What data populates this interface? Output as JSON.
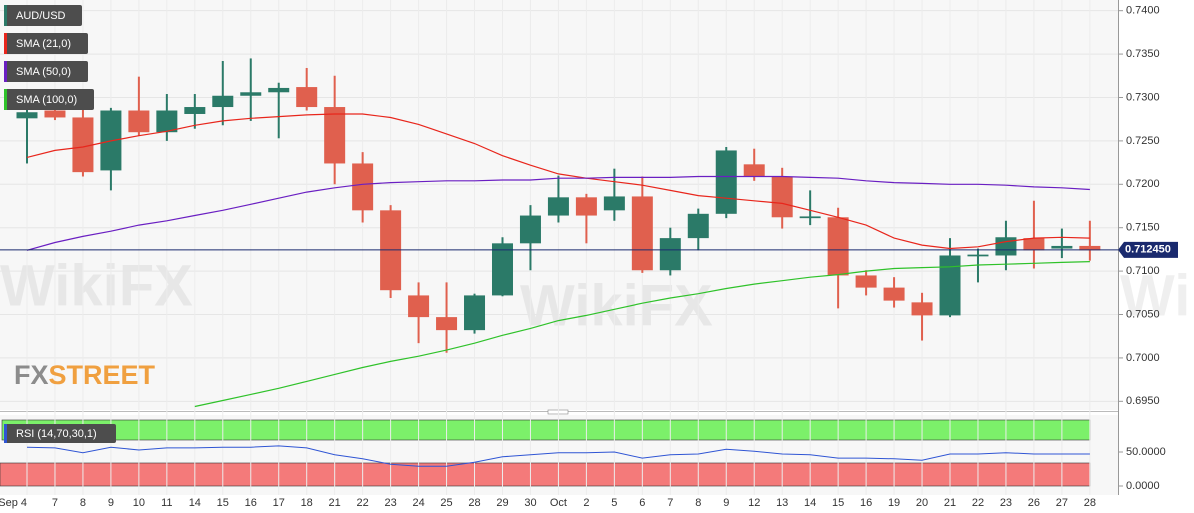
{
  "chart_data": {
    "type": "candlestick",
    "categories": [
      "Sep 4",
      "7",
      "8",
      "9",
      "10",
      "11",
      "14",
      "15",
      "16",
      "17",
      "18",
      "21",
      "22",
      "23",
      "24",
      "25",
      "28",
      "29",
      "30",
      "Oct",
      "2",
      "5",
      "6",
      "7",
      "8",
      "9",
      "12",
      "13",
      "14",
      "15",
      "16",
      "19",
      "20",
      "21",
      "22",
      "23",
      "26",
      "27",
      "28"
    ],
    "ylim": [
      0.694,
      0.741
    ],
    "yticks": [
      {
        "value": 0.74,
        "label": "0.7400"
      },
      {
        "value": 0.735,
        "label": "0.7350"
      },
      {
        "value": 0.73,
        "label": "0.7300"
      },
      {
        "value": 0.725,
        "label": "0.7250"
      },
      {
        "value": 0.72,
        "label": "0.7200"
      },
      {
        "value": 0.715,
        "label": "0.7150"
      },
      {
        "value": 0.71,
        "label": "0.7100"
      },
      {
        "value": 0.705,
        "label": "0.7050"
      },
      {
        "value": 0.7,
        "label": "0.7000"
      },
      {
        "value": 0.695,
        "label": "0.6950"
      }
    ],
    "grid": true,
    "candles": {
      "name": "AUD/USD",
      "up_color": "#2b7a68",
      "down_color": "#e0604e",
      "open": [
        0.7276,
        0.7285,
        0.7277,
        0.7216,
        0.7285,
        0.726,
        0.7281,
        0.7289,
        0.7302,
        0.7306,
        0.7312,
        0.7289,
        0.7224,
        0.717,
        0.7072,
        0.7047,
        0.7032,
        0.7072,
        0.7132,
        0.7164,
        0.7185,
        0.717,
        0.7186,
        0.7101,
        0.7138,
        0.7166,
        0.7223,
        0.7209,
        0.7161,
        0.7162,
        0.7095,
        0.7081,
        0.7064,
        0.7049,
        0.7117,
        0.7118,
        0.7138,
        0.7126,
        0.7129
      ],
      "high": [
        0.73,
        0.7296,
        0.729,
        0.7288,
        0.7324,
        0.7304,
        0.7304,
        0.7342,
        0.7345,
        0.7317,
        0.7334,
        0.7325,
        0.7237,
        0.7176,
        0.7087,
        0.7087,
        0.7074,
        0.7139,
        0.7176,
        0.721,
        0.7189,
        0.7218,
        0.7209,
        0.715,
        0.7172,
        0.7243,
        0.7241,
        0.7219,
        0.7193,
        0.7173,
        0.7101,
        0.7093,
        0.7075,
        0.7138,
        0.7126,
        0.7158,
        0.7181,
        0.7149,
        0.7158
      ],
      "low": [
        0.7224,
        0.7274,
        0.7209,
        0.7193,
        0.7256,
        0.725,
        0.7264,
        0.7268,
        0.7273,
        0.7253,
        0.7285,
        0.72,
        0.7156,
        0.7069,
        0.7017,
        0.7006,
        0.7028,
        0.7071,
        0.7101,
        0.7156,
        0.7132,
        0.7158,
        0.7098,
        0.7095,
        0.7124,
        0.7161,
        0.7204,
        0.7149,
        0.7153,
        0.7057,
        0.7072,
        0.7058,
        0.702,
        0.7047,
        0.7087,
        0.7101,
        0.7103,
        0.7115,
        0.7112
      ],
      "close": [
        0.7283,
        0.7277,
        0.7214,
        0.7285,
        0.726,
        0.7285,
        0.7289,
        0.7302,
        0.7306,
        0.7311,
        0.7289,
        0.7224,
        0.717,
        0.7078,
        0.7047,
        0.7032,
        0.7072,
        0.7132,
        0.7164,
        0.7185,
        0.7164,
        0.7186,
        0.7101,
        0.7138,
        0.7166,
        0.7239,
        0.7209,
        0.7162,
        0.7163,
        0.7095,
        0.7081,
        0.7066,
        0.7049,
        0.7118,
        0.7119,
        0.7139,
        0.7124,
        0.7129,
        0.7124
      ]
    },
    "series": [
      {
        "name": "SMA (21,0)",
        "color": "#e8261c",
        "values": [
          0.7231,
          0.7239,
          0.7243,
          0.725,
          0.7256,
          0.7261,
          0.7268,
          0.7273,
          0.7276,
          0.7278,
          0.728,
          0.7281,
          0.7281,
          0.7277,
          0.7269,
          0.7258,
          0.7247,
          0.7233,
          0.7222,
          0.7212,
          0.7207,
          0.7203,
          0.7199,
          0.7193,
          0.7187,
          0.7184,
          0.7181,
          0.7178,
          0.717,
          0.7162,
          0.7153,
          0.7138,
          0.713,
          0.7126,
          0.7128,
          0.7134,
          0.7138,
          0.7139,
          0.7138
        ]
      },
      {
        "name": "SMA (50,0)",
        "color": "#6a1fc2",
        "values": [
          0.7124,
          0.7133,
          0.714,
          0.7146,
          0.7153,
          0.7158,
          0.7164,
          0.717,
          0.7177,
          0.7184,
          0.7191,
          0.7196,
          0.72,
          0.7202,
          0.7203,
          0.7204,
          0.7204,
          0.7205,
          0.7205,
          0.7207,
          0.7207,
          0.7208,
          0.7208,
          0.7208,
          0.7209,
          0.7209,
          0.7209,
          0.7209,
          0.7208,
          0.7207,
          0.7204,
          0.7202,
          0.7201,
          0.72,
          0.72,
          0.7199,
          0.7197,
          0.7196,
          0.7194
        ]
      },
      {
        "name": "SMA (100,0)",
        "color": "#2fc22a",
        "values": [
          null,
          null,
          null,
          null,
          null,
          null,
          0.6944,
          0.6951,
          0.6958,
          0.6965,
          0.6973,
          0.6981,
          0.6989,
          0.6996,
          0.7002,
          0.7009,
          0.7017,
          0.7026,
          0.7034,
          0.7043,
          0.7049,
          0.7056,
          0.7063,
          0.7069,
          0.7074,
          0.708,
          0.7085,
          0.7089,
          0.7093,
          0.7096,
          0.71,
          0.7103,
          0.7104,
          0.7105,
          0.7107,
          0.7108,
          0.7109,
          0.711,
          0.7111
        ]
      }
    ],
    "last_price": {
      "value": 0.71245,
      "label": "0.712450",
      "color": "#1a2a6e"
    },
    "rsi": {
      "name": "RSI (14,70,30,1)",
      "color": "#2f55d4",
      "ylim": [
        0,
        100
      ],
      "yticks": [
        {
          "value": 50,
          "label": "50.0000"
        },
        {
          "value": 0,
          "label": "0.0000"
        }
      ],
      "values": [
        57,
        56,
        49,
        57,
        53,
        56,
        56,
        57,
        57,
        59,
        56,
        46,
        40,
        32,
        29,
        29,
        35,
        43,
        46,
        49,
        49,
        50,
        41,
        46,
        47,
        54,
        51,
        47,
        46,
        41,
        41,
        40,
        38,
        47,
        47,
        49,
        47,
        47,
        47
      ]
    },
    "logo": {
      "left": "FX",
      "right": "STREET"
    },
    "watermark": "WikiFX"
  }
}
